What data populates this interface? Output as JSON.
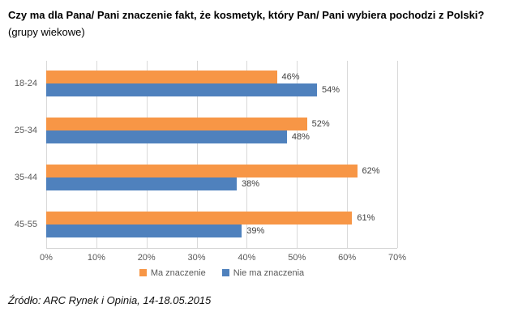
{
  "title": {
    "bold": "Czy ma dla Pana/ Pani znaczenie fakt, że kosmetyk, który Pan/ Pani wybiera pochodzi z Polski?",
    "normal": " (grupy wiekowe)"
  },
  "source": "Źródło: ARC Rynek i Opinia, 14-18.05.2015",
  "chart_data": {
    "type": "bar",
    "orientation": "horizontal",
    "title": "Czy ma dla Pana/ Pani znaczenie fakt, że kosmetyk, który Pan/ Pani wybiera pochodzi z Polski? (grupy wiekowe)",
    "categories": [
      "18-24",
      "25-34",
      "35-44",
      "45-55"
    ],
    "series": [
      {
        "name": "Ma znaczenie",
        "color": "#F79646",
        "values": [
          46,
          52,
          62,
          61
        ]
      },
      {
        "name": "Nie ma znaczenia",
        "color": "#4F81BD",
        "values": [
          54,
          48,
          38,
          39
        ]
      }
    ],
    "xlim": [
      0,
      70
    ],
    "xticks": [
      "0%",
      "10%",
      "20%",
      "30%",
      "40%",
      "50%",
      "60%",
      "70%"
    ],
    "data_label_suffix": "%",
    "grid": true,
    "legend_position": "bottom"
  }
}
